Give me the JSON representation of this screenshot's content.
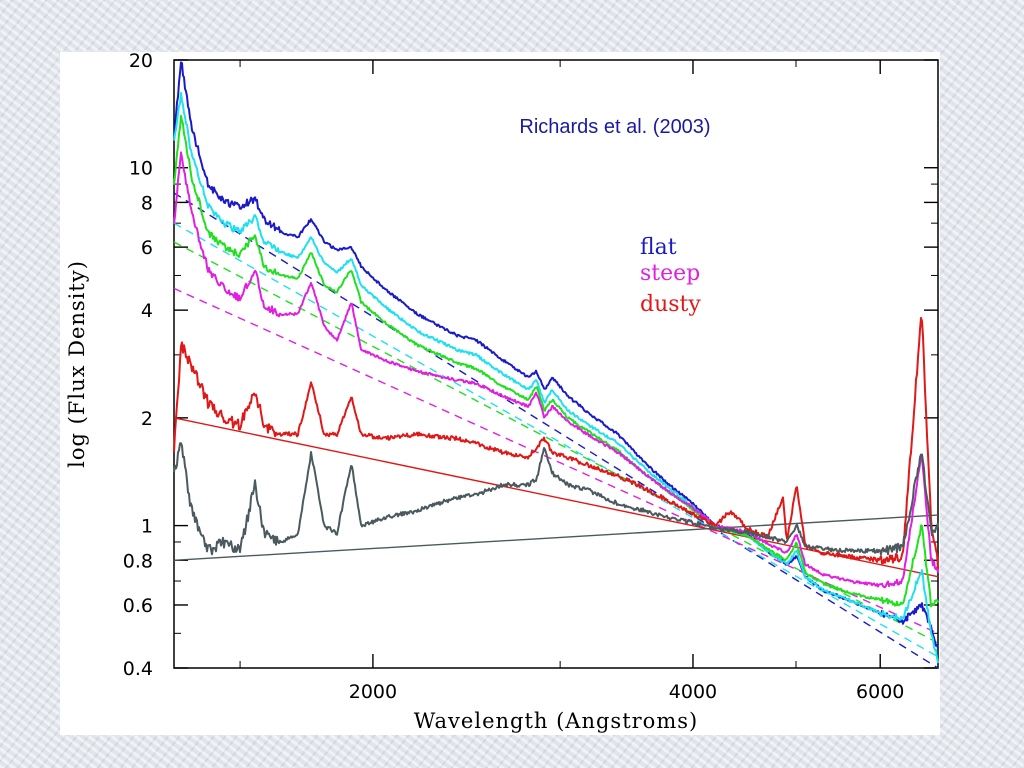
{
  "chart_data": {
    "type": "line",
    "title": "",
    "annotation": "Richards et al. (2003)",
    "xlabel": "Wavelength (Angstroms)",
    "ylabel": "log (Flux Density)",
    "x_scale": "log",
    "y_scale": "log",
    "xlim": [
      1300,
      6800
    ],
    "ylim": [
      0.4,
      20
    ],
    "x_ticks": [
      {
        "value": 2000,
        "label": "2000"
      },
      {
        "value": 4000,
        "label": "4000"
      },
      {
        "value": 6000,
        "label": "6000"
      }
    ],
    "y_ticks": [
      {
        "value": 20,
        "label": "20"
      },
      {
        "value": 10,
        "label": "10"
      },
      {
        "value": 8,
        "label": "8"
      },
      {
        "value": 6,
        "label": "6"
      },
      {
        "value": 4,
        "label": "4"
      },
      {
        "value": 2,
        "label": "2"
      },
      {
        "value": 1,
        "label": "1"
      },
      {
        "value": 0.8,
        "label": "0.8"
      },
      {
        "value": 0.6,
        "label": "0.6"
      },
      {
        "value": 0.4,
        "label": "0.4"
      }
    ],
    "grid": false,
    "legend": {
      "position": "top-right",
      "entries": [
        {
          "label": "flat",
          "color": "#1a1ac8"
        },
        {
          "label": "steep",
          "color": "#e020e0"
        },
        {
          "label": "dusty",
          "color": "#e01818"
        }
      ]
    },
    "series": [
      {
        "color": "#1a1ac8",
        "points": [
          [
            1300,
            12
          ],
          [
            1320,
            20
          ],
          [
            1350,
            13
          ],
          [
            1400,
            9
          ],
          [
            1450,
            8
          ],
          [
            1500,
            7.8
          ],
          [
            1549,
            8.2
          ],
          [
            1580,
            7.2
          ],
          [
            1640,
            6.6
          ],
          [
            1700,
            6.4
          ],
          [
            1750,
            7.2
          ],
          [
            1800,
            6.2
          ],
          [
            1850,
            5.9
          ],
          [
            1909,
            6.0
          ],
          [
            1950,
            5.3
          ],
          [
            2050,
            4.6
          ],
          [
            2200,
            3.9
          ],
          [
            2400,
            3.4
          ],
          [
            2500,
            3.3
          ],
          [
            2650,
            2.9
          ],
          [
            2800,
            2.6
          ],
          [
            2850,
            2.7
          ],
          [
            2900,
            2.4
          ],
          [
            2950,
            2.6
          ],
          [
            3050,
            2.3
          ],
          [
            3200,
            2.05
          ],
          [
            3400,
            1.8
          ],
          [
            3600,
            1.5
          ],
          [
            3800,
            1.3
          ],
          [
            4000,
            1.15
          ],
          [
            4200,
            1.0
          ],
          [
            4500,
            0.95
          ],
          [
            4700,
            0.85
          ],
          [
            4900,
            0.78
          ],
          [
            5007,
            0.82
          ],
          [
            5100,
            0.72
          ],
          [
            5300,
            0.66
          ],
          [
            5600,
            0.62
          ],
          [
            6000,
            0.57
          ],
          [
            6300,
            0.54
          ],
          [
            6563,
            0.6
          ],
          [
            6700,
            0.52
          ],
          [
            6800,
            0.45
          ]
        ]
      },
      {
        "color": "#20e0f0",
        "points": [
          [
            1300,
            12
          ],
          [
            1320,
            16
          ],
          [
            1350,
            11
          ],
          [
            1400,
            7.8
          ],
          [
            1450,
            7.0
          ],
          [
            1500,
            6.6
          ],
          [
            1549,
            7.3
          ],
          [
            1580,
            6.2
          ],
          [
            1640,
            5.8
          ],
          [
            1700,
            5.6
          ],
          [
            1750,
            6.4
          ],
          [
            1800,
            5.4
          ],
          [
            1850,
            5.1
          ],
          [
            1909,
            5.6
          ],
          [
            1950,
            4.7
          ],
          [
            2050,
            4.1
          ],
          [
            2200,
            3.5
          ],
          [
            2400,
            3.1
          ],
          [
            2500,
            3.0
          ],
          [
            2650,
            2.65
          ],
          [
            2800,
            2.4
          ],
          [
            2850,
            2.55
          ],
          [
            2900,
            2.2
          ],
          [
            2950,
            2.4
          ],
          [
            3050,
            2.1
          ],
          [
            3200,
            1.9
          ],
          [
            3400,
            1.7
          ],
          [
            3600,
            1.45
          ],
          [
            3800,
            1.27
          ],
          [
            4000,
            1.13
          ],
          [
            4200,
            0.99
          ],
          [
            4500,
            0.94
          ],
          [
            4700,
            0.85
          ],
          [
            4900,
            0.78
          ],
          [
            5007,
            0.85
          ],
          [
            5100,
            0.72
          ],
          [
            5300,
            0.66
          ],
          [
            5600,
            0.62
          ],
          [
            6000,
            0.57
          ],
          [
            6300,
            0.55
          ],
          [
            6563,
            0.75
          ],
          [
            6700,
            0.5
          ],
          [
            6800,
            0.42
          ]
        ]
      },
      {
        "color": "#20e020",
        "points": [
          [
            1300,
            9
          ],
          [
            1320,
            14
          ],
          [
            1350,
            9.5
          ],
          [
            1400,
            6.6
          ],
          [
            1450,
            6.0
          ],
          [
            1500,
            5.7
          ],
          [
            1549,
            6.5
          ],
          [
            1580,
            5.3
          ],
          [
            1640,
            5.0
          ],
          [
            1700,
            4.9
          ],
          [
            1750,
            5.8
          ],
          [
            1800,
            4.7
          ],
          [
            1850,
            4.5
          ],
          [
            1909,
            5.2
          ],
          [
            1950,
            4.2
          ],
          [
            2050,
            3.7
          ],
          [
            2200,
            3.2
          ],
          [
            2400,
            2.85
          ],
          [
            2500,
            2.75
          ],
          [
            2650,
            2.45
          ],
          [
            2800,
            2.25
          ],
          [
            2850,
            2.45
          ],
          [
            2900,
            2.1
          ],
          [
            2950,
            2.25
          ],
          [
            3050,
            2.0
          ],
          [
            3200,
            1.82
          ],
          [
            3400,
            1.62
          ],
          [
            3600,
            1.4
          ],
          [
            3800,
            1.24
          ],
          [
            4000,
            1.11
          ],
          [
            4200,
            0.99
          ],
          [
            4500,
            0.94
          ],
          [
            4700,
            0.86
          ],
          [
            4900,
            0.8
          ],
          [
            5007,
            0.9
          ],
          [
            5100,
            0.74
          ],
          [
            5300,
            0.69
          ],
          [
            5600,
            0.65
          ],
          [
            6000,
            0.62
          ],
          [
            6300,
            0.6
          ],
          [
            6563,
            1.0
          ],
          [
            6700,
            0.6
          ],
          [
            6800,
            0.62
          ]
        ]
      },
      {
        "color": "#e020e0",
        "points": [
          [
            1300,
            7
          ],
          [
            1320,
            11
          ],
          [
            1350,
            7.5
          ],
          [
            1400,
            5.2
          ],
          [
            1450,
            4.6
          ],
          [
            1500,
            4.3
          ],
          [
            1549,
            5.2
          ],
          [
            1580,
            4.1
          ],
          [
            1640,
            3.9
          ],
          [
            1700,
            3.9
          ],
          [
            1750,
            4.8
          ],
          [
            1800,
            3.6
          ],
          [
            1850,
            3.3
          ],
          [
            1909,
            4.2
          ],
          [
            1950,
            3.1
          ],
          [
            2050,
            2.9
          ],
          [
            2200,
            2.7
          ],
          [
            2400,
            2.55
          ],
          [
            2500,
            2.5
          ],
          [
            2650,
            2.3
          ],
          [
            2800,
            2.15
          ],
          [
            2850,
            2.35
          ],
          [
            2900,
            2.0
          ],
          [
            2950,
            2.15
          ],
          [
            3050,
            1.95
          ],
          [
            3200,
            1.78
          ],
          [
            3400,
            1.6
          ],
          [
            3600,
            1.4
          ],
          [
            3800,
            1.24
          ],
          [
            4000,
            1.12
          ],
          [
            4200,
            1.0
          ],
          [
            4500,
            0.96
          ],
          [
            4700,
            0.89
          ],
          [
            4900,
            0.84
          ],
          [
            5007,
            0.95
          ],
          [
            5100,
            0.78
          ],
          [
            5300,
            0.73
          ],
          [
            5600,
            0.7
          ],
          [
            6000,
            0.68
          ],
          [
            6300,
            0.7
          ],
          [
            6563,
            1.6
          ],
          [
            6700,
            0.8
          ],
          [
            6800,
            0.75
          ]
        ]
      },
      {
        "color": "#e01818",
        "points": [
          [
            1300,
            1.6
          ],
          [
            1320,
            3.2
          ],
          [
            1350,
            2.8
          ],
          [
            1400,
            2.2
          ],
          [
            1450,
            2.0
          ],
          [
            1500,
            1.9
          ],
          [
            1549,
            2.4
          ],
          [
            1580,
            1.9
          ],
          [
            1640,
            1.8
          ],
          [
            1700,
            1.8
          ],
          [
            1750,
            2.5
          ],
          [
            1800,
            1.8
          ],
          [
            1850,
            1.8
          ],
          [
            1909,
            2.3
          ],
          [
            1950,
            1.8
          ],
          [
            2050,
            1.75
          ],
          [
            2200,
            1.8
          ],
          [
            2400,
            1.75
          ],
          [
            2500,
            1.7
          ],
          [
            2650,
            1.6
          ],
          [
            2800,
            1.55
          ],
          [
            2850,
            1.65
          ],
          [
            2900,
            1.75
          ],
          [
            2950,
            1.6
          ],
          [
            3050,
            1.55
          ],
          [
            3200,
            1.47
          ],
          [
            3400,
            1.38
          ],
          [
            3600,
            1.27
          ],
          [
            3800,
            1.17
          ],
          [
            4000,
            1.08
          ],
          [
            4200,
            1.0
          ],
          [
            4340,
            1.1
          ],
          [
            4500,
            0.98
          ],
          [
            4700,
            0.93
          ],
          [
            4861,
            1.2
          ],
          [
            4900,
            0.9
          ],
          [
            5007,
            1.3
          ],
          [
            5100,
            0.88
          ],
          [
            5300,
            0.84
          ],
          [
            5600,
            0.82
          ],
          [
            6000,
            0.8
          ],
          [
            6300,
            0.82
          ],
          [
            6563,
            4.0
          ],
          [
            6700,
            1.0
          ],
          [
            6800,
            0.78
          ]
        ]
      },
      {
        "color": "#4a5a5e",
        "points": [
          [
            1300,
            1.4
          ],
          [
            1320,
            1.7
          ],
          [
            1350,
            1.1
          ],
          [
            1400,
            0.85
          ],
          [
            1450,
            0.9
          ],
          [
            1500,
            0.85
          ],
          [
            1549,
            1.3
          ],
          [
            1580,
            0.95
          ],
          [
            1640,
            0.9
          ],
          [
            1700,
            0.95
          ],
          [
            1750,
            1.6
          ],
          [
            1800,
            1.0
          ],
          [
            1850,
            0.95
          ],
          [
            1909,
            1.5
          ],
          [
            1950,
            1.0
          ],
          [
            2050,
            1.05
          ],
          [
            2200,
            1.1
          ],
          [
            2400,
            1.2
          ],
          [
            2500,
            1.22
          ],
          [
            2650,
            1.3
          ],
          [
            2800,
            1.3
          ],
          [
            2850,
            1.35
          ],
          [
            2900,
            1.65
          ],
          [
            2950,
            1.4
          ],
          [
            3050,
            1.3
          ],
          [
            3200,
            1.25
          ],
          [
            3400,
            1.15
          ],
          [
            3600,
            1.1
          ],
          [
            3800,
            1.05
          ],
          [
            4000,
            1.02
          ],
          [
            4200,
            0.98
          ],
          [
            4500,
            0.96
          ],
          [
            4700,
            0.93
          ],
          [
            4900,
            0.9
          ],
          [
            5007,
            1.0
          ],
          [
            5100,
            0.88
          ],
          [
            5300,
            0.86
          ],
          [
            5600,
            0.85
          ],
          [
            6000,
            0.85
          ],
          [
            6300,
            0.87
          ],
          [
            6563,
            1.6
          ],
          [
            6700,
            0.95
          ],
          [
            6800,
            1.0
          ]
        ]
      }
    ],
    "fit_lines": [
      {
        "color": "#1a1ac8",
        "dashed": true,
        "from": [
          1300,
          8.5
        ],
        "to": [
          6800,
          0.4
        ]
      },
      {
        "color": "#20e0f0",
        "dashed": true,
        "from": [
          1300,
          7.0
        ],
        "to": [
          6800,
          0.43
        ]
      },
      {
        "color": "#20e020",
        "dashed": true,
        "from": [
          1300,
          6.2
        ],
        "to": [
          6800,
          0.47
        ]
      },
      {
        "color": "#e020e0",
        "dashed": true,
        "from": [
          1300,
          4.6
        ],
        "to": [
          6800,
          0.5
        ]
      },
      {
        "color": "#e01818",
        "dashed": false,
        "from": [
          1300,
          2.0
        ],
        "to": [
          6800,
          0.72
        ]
      },
      {
        "color": "#4a5a5e",
        "dashed": false,
        "from": [
          1300,
          0.8
        ],
        "to": [
          6800,
          1.07
        ]
      }
    ]
  }
}
